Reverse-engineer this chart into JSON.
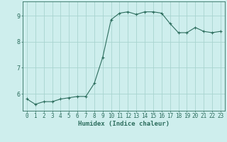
{
  "x": [
    0,
    1,
    2,
    3,
    4,
    5,
    6,
    7,
    8,
    9,
    10,
    11,
    12,
    13,
    14,
    15,
    16,
    17,
    18,
    19,
    20,
    21,
    22,
    23
  ],
  "y": [
    5.8,
    5.6,
    5.7,
    5.7,
    5.8,
    5.85,
    5.9,
    5.9,
    6.4,
    7.4,
    8.85,
    9.1,
    9.15,
    9.05,
    9.15,
    9.15,
    9.1,
    8.7,
    8.35,
    8.35,
    8.55,
    8.4,
    8.35,
    8.4
  ],
  "xlabel": "Humidex (Indice chaleur)",
  "ylim": [
    5.35,
    9.55
  ],
  "xlim": [
    -0.5,
    23.5
  ],
  "yticks": [
    6,
    7,
    8,
    9
  ],
  "xticks": [
    0,
    1,
    2,
    3,
    4,
    5,
    6,
    7,
    8,
    9,
    10,
    11,
    12,
    13,
    14,
    15,
    16,
    17,
    18,
    19,
    20,
    21,
    22,
    23
  ],
  "line_color": "#2d6e5e",
  "marker_color": "#2d6e5e",
  "bg_color": "#ceeeed",
  "grid_color": "#a8d4d0",
  "axis_color": "#2d6e5e",
  "label_color": "#2d6e5e",
  "tick_fontsize": 5.5,
  "xlabel_fontsize": 6.5
}
